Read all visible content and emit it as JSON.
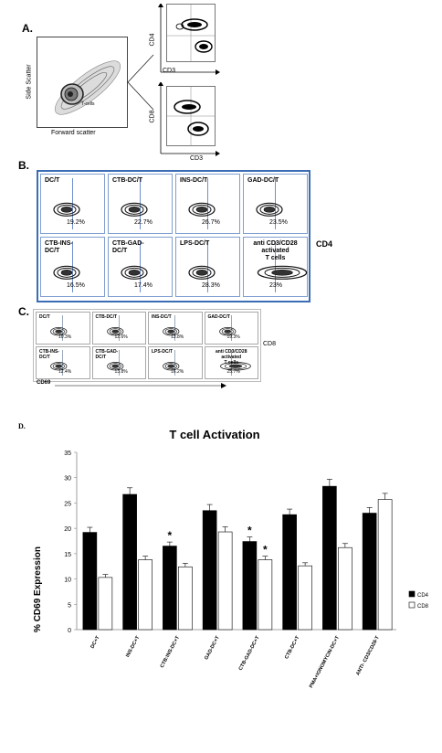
{
  "panelA": {
    "label": "A.",
    "scatter": {
      "xlabel": "Forward scatter",
      "ylabel": "Side Scatter",
      "gate_label": "T-cells"
    },
    "cd4plot": {
      "xlabel": "CD3",
      "ylabel": "CD4"
    },
    "cd8plot": {
      "xlabel": "CD3",
      "ylabel": "CD8"
    }
  },
  "panelB": {
    "label": "B.",
    "side_label": "CD4",
    "cells": [
      {
        "name": "DC/T",
        "pct": "19.2%"
      },
      {
        "name": "CTB-DC/T",
        "pct": "22.7%"
      },
      {
        "name": "INS-DC/T",
        "pct": "26.7%"
      },
      {
        "name": "GAD-DC/T",
        "pct": "23.5%"
      },
      {
        "name": "CTB-INS-\nDC/T",
        "pct": "16.5%"
      },
      {
        "name": "CTB-GAD-\nDC/T",
        "pct": "17.4%"
      },
      {
        "name": "LPS-DC/T",
        "pct": "28.3%"
      },
      {
        "name": "anti CD3/CD28\nactivated\nT cells",
        "pct": "23%"
      }
    ]
  },
  "panelC": {
    "label": "C.",
    "side_label": "CD8",
    "xlabel": "CD69",
    "cells": [
      {
        "name": "DC/T",
        "pct": "10.3%"
      },
      {
        "name": "CTB-DC/T",
        "pct": "12.6%"
      },
      {
        "name": "INS-DC/T",
        "pct": "13.8%"
      },
      {
        "name": "GAD-DC/T",
        "pct": "19.3%"
      },
      {
        "name": "CTB-INS-\nDC/T",
        "pct": "12.4%"
      },
      {
        "name": "CTB-GAD-\nDC/T",
        "pct": "13.8%"
      },
      {
        "name": "LPS-DC/T",
        "pct": "16.2%"
      },
      {
        "name": "anti CD3/CD28\nactivated\nT cells",
        "pct": "25.7%"
      }
    ]
  },
  "panelD": {
    "label": "D."
  },
  "chart_data": {
    "type": "bar",
    "title": "T cell Activation",
    "xlabel": "",
    "ylabel": "% CD69 Expression",
    "ylim": [
      0,
      35
    ],
    "yticks": [
      0,
      5,
      10,
      15,
      20,
      25,
      30,
      35
    ],
    "categories": [
      "DC+T",
      "INS-DC+T",
      "CTB:INS-DC+T",
      "GAD-DC+T",
      "CTB-GAD-DC+T",
      "CTB-DC+T",
      "PMA+IONOMYCIN-DC+T",
      "ANTI- CD3/CD28-T"
    ],
    "series": [
      {
        "name": "CD4",
        "color": "#000000",
        "values": [
          19.2,
          26.7,
          16.5,
          23.5,
          17.4,
          22.7,
          28.3,
          23.0
        ],
        "errors": [
          1.0,
          1.3,
          0.8,
          1.2,
          0.9,
          1.1,
          1.4,
          1.1
        ]
      },
      {
        "name": "CD8",
        "color": "#ffffff",
        "values": [
          10.3,
          13.8,
          12.4,
          19.3,
          13.8,
          12.6,
          16.2,
          25.7
        ],
        "errors": [
          0.6,
          0.7,
          0.7,
          1.0,
          0.7,
          0.6,
          0.8,
          1.2
        ]
      }
    ],
    "significance": [
      {
        "category": "CTB:INS-DC+T",
        "series": "CD4",
        "mark": "*"
      },
      {
        "category": "CTB-GAD-DC+T",
        "series": "CD4",
        "mark": "*"
      },
      {
        "category": "CTB-GAD-DC+T",
        "series": "CD8",
        "mark": "*"
      }
    ],
    "legend_position": "right"
  }
}
